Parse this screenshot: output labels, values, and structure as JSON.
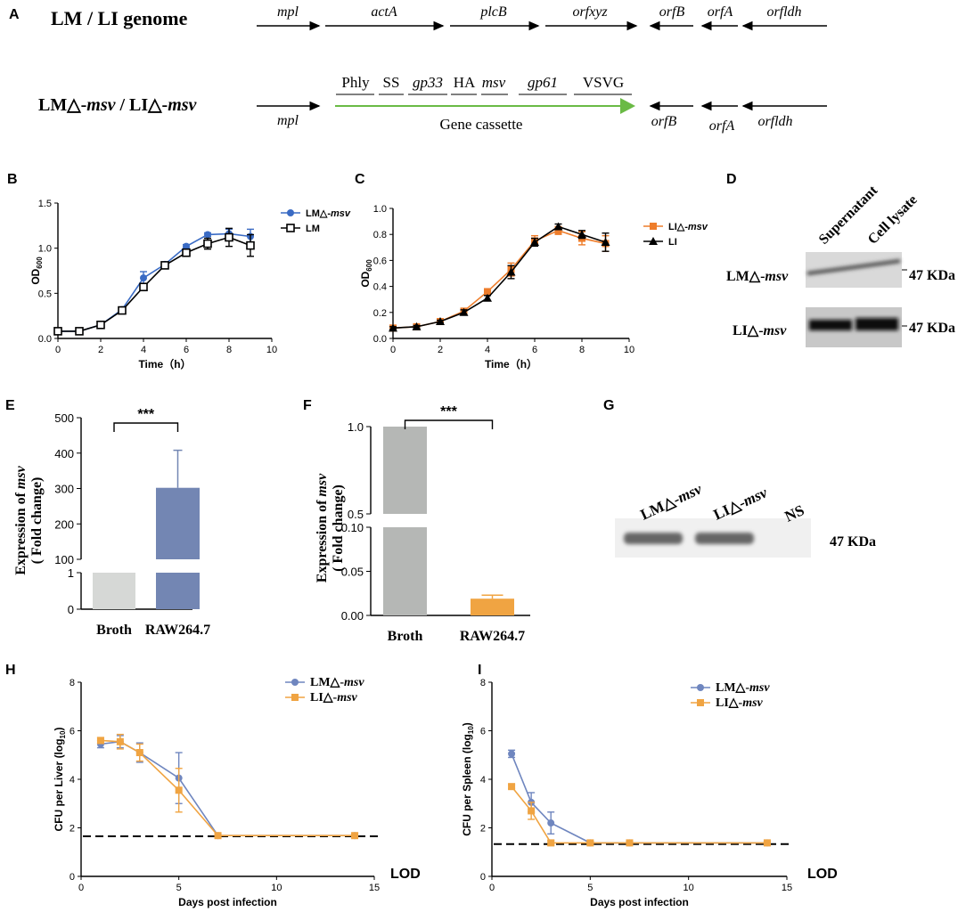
{
  "panel_letters": {
    "A": "A",
    "B": "B",
    "C": "C",
    "D": "D",
    "E": "E",
    "F": "F",
    "G": "G",
    "H": "H",
    "I": "I"
  },
  "panel_a": {
    "row1_label": "LM / LI genome",
    "row1_genes": [
      "mpl",
      "actA",
      "plcB",
      "orfxyz",
      "orfB",
      "orfA",
      "orfldh"
    ],
    "row2_label_main": "LM△-",
    "row2_label_italic": "msv",
    "row2_label_sep": " / LI△-",
    "row2_label_italic2": "msv",
    "row2_mpl": "mpl",
    "cassette_parts": [
      "Phly",
      "SS",
      "gp33",
      "HA",
      "msv",
      "gp61",
      "VSVG"
    ],
    "cassette_label": "Gene cassette",
    "row2_genes": [
      "orfB",
      "orfA",
      "orfldh"
    ],
    "cassette_color": "#6aba45"
  },
  "panel_d": {
    "col_headers": [
      "Supernatant",
      "Cell lysate"
    ],
    "row_labels": [
      {
        "main": "LM△-",
        "italic": "msv"
      },
      {
        "main": "LI△-",
        "italic": "msv"
      }
    ],
    "size_labels": [
      "47 KDa",
      "47 KDa"
    ]
  },
  "panel_g": {
    "lane_labels": [
      {
        "main": "LM△-",
        "italic": "msv"
      },
      {
        "main": "LI△-",
        "italic": "msv"
      },
      {
        "main": "NS",
        "italic": ""
      }
    ],
    "size_label": "47 KDa"
  },
  "colors": {
    "blue": "#3a6bc4",
    "orange": "#ee7d2b",
    "black": "#000000",
    "gray": "#c9cbc9",
    "darkgray": "#b5b7b5",
    "slate": "#7386b3",
    "amber": "#f0a442"
  },
  "chart_data": [
    {
      "id": "B",
      "type": "line",
      "xlabel": "Time（h）",
      "ylabel_main": "OD",
      "ylabel_sub": "600",
      "xlim": [
        0,
        10
      ],
      "ylim": [
        0,
        1.5
      ],
      "xticks": [
        "0",
        "2",
        "4",
        "6",
        "8",
        "10"
      ],
      "yticks": [
        "0.0",
        "0.5",
        "1.0",
        "1.5"
      ],
      "series": [
        {
          "name": "LM△-msv",
          "name_main": "LM△-",
          "name_italic": "msv",
          "marker": "circle",
          "color": "#3a6bc4",
          "x": [
            0,
            1,
            2,
            3,
            4,
            5,
            6,
            7,
            8,
            9
          ],
          "y": [
            0.08,
            0.08,
            0.15,
            0.32,
            0.67,
            0.82,
            1.02,
            1.15,
            1.16,
            1.13
          ],
          "err": [
            0.01,
            0.01,
            0.02,
            0.02,
            0.07,
            0.02,
            0.02,
            0.02,
            0.05,
            0.08
          ]
        },
        {
          "name": "LM",
          "name_main": "LM",
          "name_italic": "",
          "marker": "square-open",
          "color": "#000000",
          "x": [
            0,
            1,
            2,
            3,
            4,
            5,
            6,
            7,
            8,
            9
          ],
          "y": [
            0.08,
            0.08,
            0.15,
            0.31,
            0.57,
            0.81,
            0.95,
            1.05,
            1.12,
            1.03
          ],
          "err": [
            0.01,
            0.01,
            0.02,
            0.02,
            0.03,
            0.02,
            0.03,
            0.06,
            0.1,
            0.12
          ]
        }
      ]
    },
    {
      "id": "C",
      "type": "line",
      "xlabel": "Time（h）",
      "ylabel_main": "OD",
      "ylabel_sub": "600",
      "xlim": [
        0,
        10
      ],
      "ylim": [
        0,
        1.0
      ],
      "xticks": [
        "0",
        "2",
        "4",
        "6",
        "8",
        "10"
      ],
      "yticks": [
        "0.0",
        "0.2",
        "0.4",
        "0.6",
        "0.8",
        "1.0"
      ],
      "series": [
        {
          "name": "LI△-msv",
          "name_main": "LI△-",
          "name_italic": "msv",
          "marker": "square",
          "color": "#ee7d2b",
          "x": [
            0,
            1,
            2,
            3,
            4,
            5,
            6,
            7,
            8,
            9
          ],
          "y": [
            0.08,
            0.09,
            0.13,
            0.21,
            0.36,
            0.53,
            0.75,
            0.83,
            0.77,
            0.73
          ],
          "err": [
            0.01,
            0.01,
            0.02,
            0.02,
            0.02,
            0.05,
            0.04,
            0.03,
            0.05,
            0.06
          ]
        },
        {
          "name": "LI",
          "name_main": "LI",
          "name_italic": "",
          "marker": "triangle",
          "color": "#000000",
          "x": [
            0,
            1,
            2,
            3,
            4,
            5,
            6,
            7,
            8,
            9
          ],
          "y": [
            0.08,
            0.09,
            0.13,
            0.2,
            0.31,
            0.51,
            0.74,
            0.86,
            0.8,
            0.74
          ],
          "err": [
            0.01,
            0.01,
            0.01,
            0.02,
            0.02,
            0.05,
            0.03,
            0.02,
            0.03,
            0.07
          ]
        }
      ]
    },
    {
      "id": "E",
      "type": "bar",
      "ylabel_pre": "Expression of ",
      "ylabel_italic": "msv",
      "ylabel2": "( Fold change)",
      "categories": [
        "Broth",
        "RAW264.7"
      ],
      "values": [
        1,
        302
      ],
      "errors": [
        0,
        106
      ],
      "colors": [
        "#d6d8d6",
        "#7386b3"
      ],
      "yticks_upper": [
        "100",
        "200",
        "300",
        "400",
        "500"
      ],
      "yticks_lower": [
        "0",
        "1"
      ],
      "broken_axis": {
        "lower": [
          0,
          1
        ],
        "upper": [
          100,
          500
        ]
      },
      "significance": "***"
    },
    {
      "id": "F",
      "type": "bar",
      "ylabel_pre": "Expression of ",
      "ylabel_italic": "msv",
      "ylabel2": "( Fold change)",
      "categories": [
        "Broth",
        "RAW264.7"
      ],
      "values": [
        1.0,
        0.019
      ],
      "errors": [
        0,
        0.004
      ],
      "colors": [
        "#b5b7b5",
        "#f0a442"
      ],
      "yticks_upper": [
        "0.5",
        "1.0"
      ],
      "yticks_lower": [
        "0.00",
        "0.05",
        "0.10"
      ],
      "broken_axis": {
        "lower": [
          0,
          0.1
        ],
        "upper": [
          0.5,
          1.0
        ]
      },
      "significance": "***"
    },
    {
      "id": "H",
      "type": "line",
      "xlabel": "Days post infection",
      "ylabel_pre": "CFU per Liver (log",
      "ylabel_sub": "10",
      "ylabel_post": ")",
      "xlim": [
        0,
        15
      ],
      "ylim": [
        0,
        8
      ],
      "xticks": [
        "0",
        "5",
        "10",
        "15"
      ],
      "yticks": [
        "0",
        "2",
        "4",
        "6",
        "8"
      ],
      "lod": 1.65,
      "lod_label": "LOD",
      "series": [
        {
          "name": "LM△-msv",
          "name_main": "LM△-",
          "name_italic": "msv",
          "marker": "circle",
          "color": "#6f86bf",
          "x": [
            1,
            2,
            3,
            5,
            7,
            14
          ],
          "y": [
            5.45,
            5.55,
            5.1,
            4.05,
            1.68,
            1.68
          ],
          "err": [
            0.15,
            0.25,
            0.4,
            1.05,
            0.05,
            0.05
          ]
        },
        {
          "name": "LI△-msv",
          "name_main": "LI△-",
          "name_italic": "msv",
          "marker": "square",
          "color": "#f0a442",
          "x": [
            1,
            2,
            3,
            5,
            7,
            14
          ],
          "y": [
            5.6,
            5.55,
            5.1,
            3.55,
            1.68,
            1.68
          ],
          "err": [
            0.12,
            0.3,
            0.35,
            0.9,
            0.05,
            0.05
          ]
        }
      ]
    },
    {
      "id": "I",
      "type": "line",
      "xlabel": "Days post infection",
      "ylabel_pre": "CFU per Spleen (log",
      "ylabel_sub": "10",
      "ylabel_post": ")",
      "xlim": [
        0,
        15
      ],
      "ylim": [
        0,
        8
      ],
      "xticks": [
        "0",
        "5",
        "10",
        "15"
      ],
      "yticks": [
        "0",
        "2",
        "4",
        "6",
        "8"
      ],
      "lod": 1.33,
      "lod_label": "LOD",
      "series": [
        {
          "name": "LM△-msv",
          "name_main": "LM△-",
          "name_italic": "msv",
          "marker": "circle",
          "color": "#6f86bf",
          "x": [
            1,
            2,
            3,
            5,
            7,
            14
          ],
          "y": [
            5.05,
            3.05,
            2.2,
            1.38,
            1.38,
            1.38
          ],
          "err": [
            0.15,
            0.4,
            0.45,
            0.05,
            0.05,
            0.05
          ]
        },
        {
          "name": "LI△-msv",
          "name_main": "LI△-",
          "name_italic": "msv",
          "marker": "square",
          "color": "#f0a442",
          "x": [
            1,
            2,
            3,
            5,
            7,
            14
          ],
          "y": [
            3.7,
            2.7,
            1.38,
            1.38,
            1.38,
            1.38
          ],
          "err": [
            0.08,
            0.35,
            0.1,
            0.05,
            0.05,
            0.05
          ]
        }
      ]
    }
  ]
}
